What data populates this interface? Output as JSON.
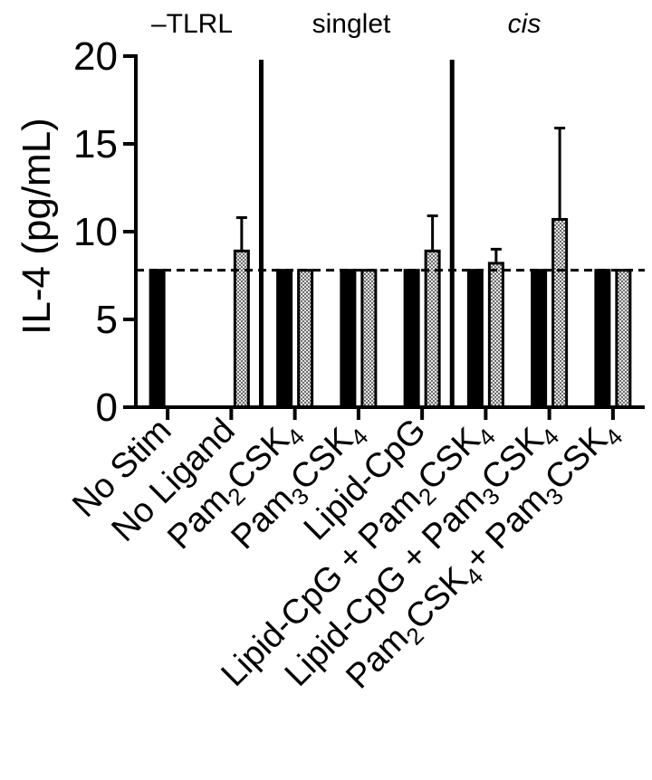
{
  "chart_data": {
    "type": "bar",
    "ylabel": "IL-4 (pg/mL)",
    "ylim": [
      0,
      20
    ],
    "yticks": [
      0,
      5,
      10,
      15,
      20
    ],
    "reference_line": {
      "value": 7.8,
      "style": "dashed"
    },
    "group_headers": [
      "–TLRL",
      "singlet",
      "cis"
    ],
    "categories": [
      {
        "parts": [
          {
            "t": "No Stim"
          }
        ]
      },
      {
        "parts": [
          {
            "t": "No Ligand"
          }
        ]
      },
      {
        "parts": [
          {
            "t": "Pam"
          },
          {
            "t": "2",
            "sub": true
          },
          {
            "t": "CSK"
          },
          {
            "t": "4",
            "sub": true
          }
        ]
      },
      {
        "parts": [
          {
            "t": "Pam"
          },
          {
            "t": "3",
            "sub": true
          },
          {
            "t": "CSK"
          },
          {
            "t": "4",
            "sub": true
          }
        ]
      },
      {
        "parts": [
          {
            "t": "Lipid-CpG"
          }
        ]
      },
      {
        "parts": [
          {
            "t": "Lipid-CpG + Pam"
          },
          {
            "t": "2",
            "sub": true
          },
          {
            "t": "CSK"
          },
          {
            "t": "4",
            "sub": true
          }
        ]
      },
      {
        "parts": [
          {
            "t": "Lipid-CpG + Pam"
          },
          {
            "t": "3",
            "sub": true
          },
          {
            "t": "CSK"
          },
          {
            "t": "4",
            "sub": true
          }
        ]
      },
      {
        "parts": [
          {
            "t": "Pam"
          },
          {
            "t": "2",
            "sub": true
          },
          {
            "t": "CSK"
          },
          {
            "t": "4",
            "sub": true
          },
          {
            "t": "+ Pam"
          },
          {
            "t": "3",
            "sub": true
          },
          {
            "t": "CSK"
          },
          {
            "t": "4",
            "sub": true
          }
        ]
      }
    ],
    "series": [
      {
        "values": [
          7.8,
          0,
          7.8,
          7.8,
          7.8,
          7.8,
          7.8,
          7.8
        ],
        "errors": [
          0,
          0,
          0,
          0,
          0,
          0,
          0,
          0
        ],
        "fill": "#000000"
      },
      {
        "values": [
          null,
          8.9,
          7.8,
          7.8,
          8.9,
          8.2,
          10.7,
          7.8
        ],
        "errors": [
          0,
          1.9,
          0,
          0,
          2.0,
          0.8,
          5.2,
          0
        ],
        "fill": "checker"
      }
    ],
    "colors": {
      "axis": "#000000",
      "bar_solid": "#000000",
      "checker_light": "#e6e6e6",
      "checker_dark": "#6e6e6e"
    }
  }
}
